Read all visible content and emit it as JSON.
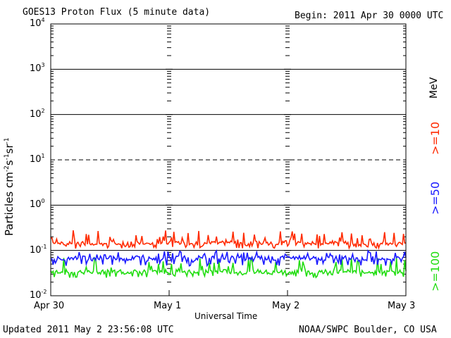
{
  "header": {
    "title": "GOES13 Proton Flux (5 minute data)",
    "begin": "Begin: 2011 Apr 30 0000 UTC"
  },
  "footer": {
    "updated": "Updated 2011 May  2 23:56:08 UTC",
    "credit": "NOAA/SWPC Boulder, CO USA"
  },
  "chart_data": {
    "type": "line",
    "title": "GOES13 Proton Flux (5 minute data)",
    "xlabel": "Universal Time",
    "ylabel": "Particles cm-2s-1sr-1",
    "ylabel_parts": {
      "base": "Particles cm",
      "e1": "-2",
      "m1": "s",
      "e2": "-1",
      "m2": "sr",
      "e3": "-1"
    },
    "yscale": "log",
    "ylim": [
      0.01,
      10000
    ],
    "xlim": [
      0,
      3
    ],
    "x_ticks": [
      {
        "x": 0,
        "label": "Apr 30"
      },
      {
        "x": 1,
        "label": "May 1"
      },
      {
        "x": 2,
        "label": "May 2"
      },
      {
        "x": 3,
        "label": "May 3"
      }
    ],
    "y_ticks": [
      {
        "value": 0.01,
        "base": "10",
        "exp": "-2"
      },
      {
        "value": 0.1,
        "base": "10",
        "exp": "-1"
      },
      {
        "value": 1,
        "base": "10",
        "exp": "0"
      },
      {
        "value": 10,
        "base": "10",
        "exp": "1"
      },
      {
        "value": 100,
        "base": "10",
        "exp": "2"
      },
      {
        "value": 1000,
        "base": "10",
        "exp": "3"
      },
      {
        "value": 10000,
        "base": "10",
        "exp": "4"
      }
    ],
    "threshold_lines": [
      {
        "value": 10,
        "style": "dashed"
      },
      {
        "value": 0.1,
        "style": "solid"
      }
    ],
    "legend_unit": "MeV",
    "series": [
      {
        "name": ">=10",
        "color": "#ff2a00",
        "x": [
          0,
          0.125,
          0.25,
          0.375,
          0.5,
          0.625,
          0.75,
          0.875,
          1,
          1.125,
          1.25,
          1.375,
          1.5,
          1.625,
          1.75,
          1.875,
          2,
          2.125,
          2.25,
          2.375,
          2.5,
          2.625,
          2.75,
          2.875,
          3
        ],
        "values": [
          0.15,
          0.14,
          0.15,
          0.14,
          0.15,
          0.14,
          0.15,
          0.14,
          0.15,
          0.15,
          0.14,
          0.15,
          0.15,
          0.14,
          0.15,
          0.14,
          0.16,
          0.15,
          0.14,
          0.15,
          0.15,
          0.14,
          0.15,
          0.14,
          0.15
        ],
        "low": 0.11,
        "high": 0.28
      },
      {
        "name": ">=50",
        "color": "#1a1aff",
        "x": [
          0,
          0.125,
          0.25,
          0.375,
          0.5,
          0.625,
          0.75,
          0.875,
          1,
          1.125,
          1.25,
          1.375,
          1.5,
          1.625,
          1.75,
          1.875,
          2,
          2.125,
          2.25,
          2.375,
          2.5,
          2.625,
          2.75,
          2.875,
          3
        ],
        "values": [
          0.07,
          0.065,
          0.07,
          0.065,
          0.07,
          0.065,
          0.07,
          0.065,
          0.07,
          0.07,
          0.065,
          0.07,
          0.07,
          0.065,
          0.07,
          0.065,
          0.07,
          0.07,
          0.065,
          0.07,
          0.07,
          0.065,
          0.07,
          0.065,
          0.07
        ],
        "low": 0.045,
        "high": 0.1
      },
      {
        "name": ">=100",
        "color": "#22dd11",
        "x": [
          0,
          0.125,
          0.25,
          0.375,
          0.5,
          0.625,
          0.75,
          0.875,
          1,
          1.125,
          1.25,
          1.375,
          1.5,
          1.625,
          1.75,
          1.875,
          2,
          2.125,
          2.25,
          2.375,
          2.5,
          2.625,
          2.75,
          2.875,
          3
        ],
        "values": [
          0.035,
          0.033,
          0.035,
          0.033,
          0.035,
          0.033,
          0.035,
          0.033,
          0.035,
          0.035,
          0.033,
          0.035,
          0.035,
          0.033,
          0.035,
          0.033,
          0.035,
          0.035,
          0.033,
          0.035,
          0.035,
          0.033,
          0.035,
          0.033,
          0.035
        ],
        "low": 0.025,
        "high": 0.07
      }
    ]
  }
}
